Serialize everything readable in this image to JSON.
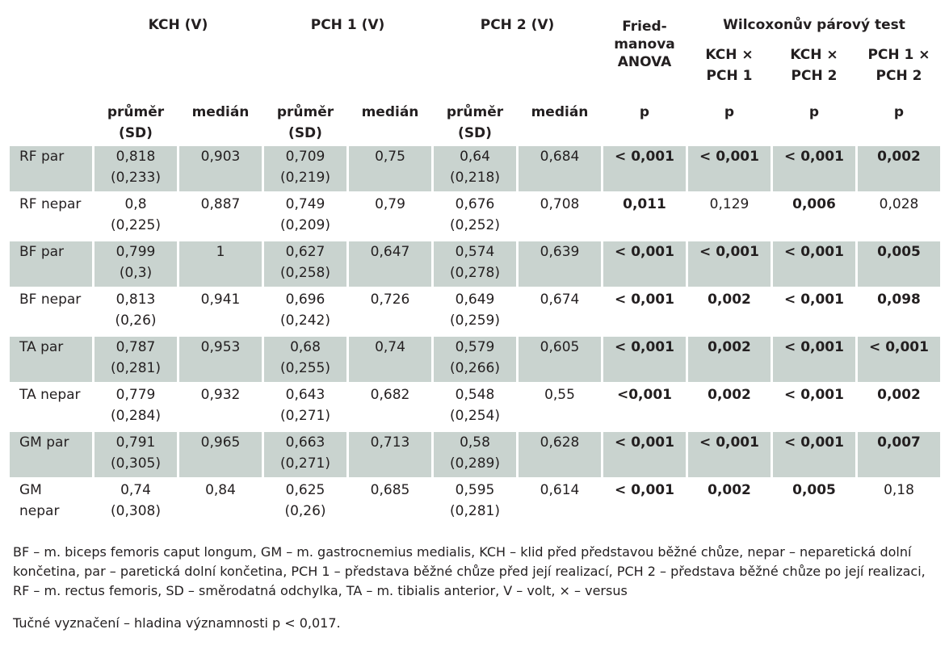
{
  "header": {
    "groups": [
      "KCH (V)",
      "PCH 1 (V)",
      "PCH 2 (V)"
    ],
    "friedman": "Fried-\nmanova\nANOVA",
    "wilcoxon": "Wilcoxonův párový test",
    "wilcoxon_cols": [
      "KCH ×\nPCH 1",
      "KCH ×\nPCH 2",
      "PCH 1 ×\nPCH 2"
    ],
    "sub_mean": "průměr\n(SD)",
    "sub_median": "medián",
    "sub_p": "p"
  },
  "rows": [
    {
      "label": "RF par",
      "kch_mean": "0,818\n(0,233)",
      "kch_median": "0,903",
      "pch1_mean": "0,709\n(0,219)",
      "pch1_median": "0,75",
      "pch2_mean": "0,64\n(0,218)",
      "pch2_median": "0,684",
      "anova": "< 0,001",
      "w1": "< 0,001",
      "w2": "< 0,001",
      "w3": "0,002"
    },
    {
      "label": "RF nepar",
      "kch_mean": "0,8\n(0,225)",
      "kch_median": "0,887",
      "pch1_mean": "0,749\n(0,209)",
      "pch1_median": "0,79",
      "pch2_mean": "0,676\n(0,252)",
      "pch2_median": "0,708",
      "anova": "0,011",
      "w1": "0,129",
      "w2": "0,006",
      "w3": "0,028"
    },
    {
      "label": "BF par",
      "kch_mean": "0,799\n(0,3)",
      "kch_median": "1",
      "pch1_mean": "0,627\n(0,258)",
      "pch1_median": "0,647",
      "pch2_mean": "0,574\n(0,278)",
      "pch2_median": "0,639",
      "anova": "< 0,001",
      "w1": "< 0,001",
      "w2": "< 0,001",
      "w3": "0,005"
    },
    {
      "label": "BF nepar",
      "kch_mean": "0,813\n(0,26)",
      "kch_median": "0,941",
      "pch1_mean": "0,696\n(0,242)",
      "pch1_median": "0,726",
      "pch2_mean": "0,649\n(0,259)",
      "pch2_median": "0,674",
      "anova": "< 0,001",
      "w1": "0,002",
      "w2": "< 0,001",
      "w3": "0,098"
    },
    {
      "label": "TA par",
      "kch_mean": "0,787\n(0,281)",
      "kch_median": "0,953",
      "pch1_mean": "0,68\n(0,255)",
      "pch1_median": "0,74",
      "pch2_mean": "0,579\n(0,266)",
      "pch2_median": "0,605",
      "anova": "< 0,001",
      "w1": "0,002",
      "w2": "< 0,001",
      "w3": "< 0,001"
    },
    {
      "label": "TA nepar",
      "kch_mean": "0,779\n(0,284)",
      "kch_median": "0,932",
      "pch1_mean": "0,643\n(0,271)",
      "pch1_median": "0,682",
      "pch2_mean": "0,548\n(0,254)",
      "pch2_median": "0,55",
      "anova": "<0,001",
      "w1": "0,002",
      "w2": "< 0,001",
      "w3": "0,002"
    },
    {
      "label": "GM par",
      "kch_mean": "0,791\n(0,305)",
      "kch_median": "0,965",
      "pch1_mean": "0,663\n(0,271)",
      "pch1_median": "0,713",
      "pch2_mean": "0,58\n(0,289)",
      "pch2_median": "0,628",
      "anova": "< 0,001",
      "w1": "< 0,001",
      "w2": "< 0,001",
      "w3": "0,007"
    },
    {
      "label": "GM\nnepar",
      "kch_mean": "0,74\n(0,308)",
      "kch_median": "0,84",
      "pch1_mean": "0,625\n(0,26)",
      "pch1_median": "0,685",
      "pch2_mean": "0,595\n(0,281)",
      "pch2_median": "0,614",
      "anova": "< 0,001",
      "w1": "0,002",
      "w2": "0,005",
      "w3": "0,18"
    }
  ],
  "colors": {
    "row_shade": "#c9d3cf",
    "text": "#231f20"
  },
  "footnote": "BF – m. biceps femoris caput longum, GM – m. gastrocnemius medialis, KCH – klid před představou běžné chůze, nepar – neparetická dolní končetina, par – paretická dolní končetina, PCH 1 – představa běžné chůze před její realizací, PCH 2 – představa běžné chůze po její realizaci, RF – m. rectus femoris, SD – směrodatná odchylka, TA – m. tibialis anterior, V – volt, × – versus",
  "significance_note": "Tučné vyznačení – hladina významnosti p < 0,017."
}
